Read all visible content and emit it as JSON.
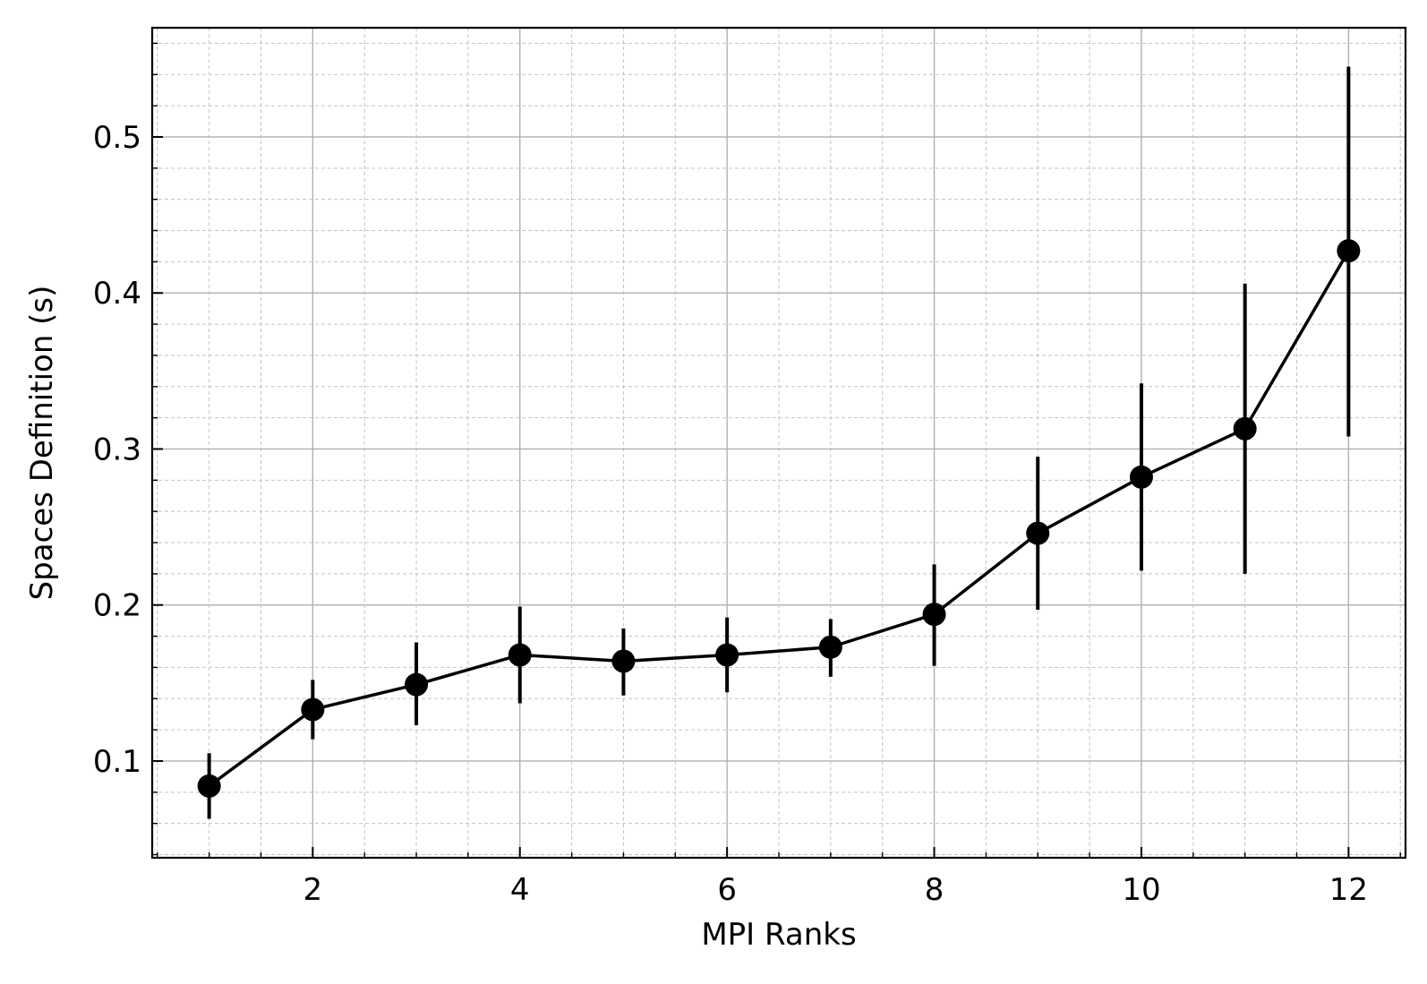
{
  "chart_data": {
    "type": "line",
    "title": "",
    "xlabel": "MPI Ranks",
    "ylabel": "Spaces Definition (s)",
    "xlim": [
      0.45,
      12.55
    ],
    "ylim": [
      0.038,
      0.57
    ],
    "x_major_ticks": [
      2,
      4,
      6,
      8,
      10,
      12
    ],
    "x_tick_labels": [
      "2",
      "4",
      "6",
      "8",
      "10",
      "12"
    ],
    "x_minor_step": 0.5,
    "y_major_ticks": [
      0.1,
      0.2,
      0.3,
      0.4,
      0.5
    ],
    "y_tick_labels": [
      "0.1",
      "0.2",
      "0.3",
      "0.4",
      "0.5"
    ],
    "y_minor_step": 0.02,
    "grid": true,
    "series": [
      {
        "color": "#000000",
        "marker": "circle",
        "x": [
          1,
          2,
          3,
          4,
          5,
          6,
          7,
          8,
          9,
          10,
          11,
          12
        ],
        "y": [
          0.084,
          0.133,
          0.149,
          0.168,
          0.164,
          0.168,
          0.173,
          0.194,
          0.246,
          0.282,
          0.313,
          0.427
        ],
        "err_low": [
          0.063,
          0.114,
          0.123,
          0.137,
          0.142,
          0.144,
          0.154,
          0.161,
          0.197,
          0.222,
          0.22,
          0.308
        ],
        "err_high": [
          0.105,
          0.152,
          0.176,
          0.199,
          0.185,
          0.192,
          0.191,
          0.226,
          0.295,
          0.342,
          0.406,
          0.545
        ]
      }
    ]
  }
}
